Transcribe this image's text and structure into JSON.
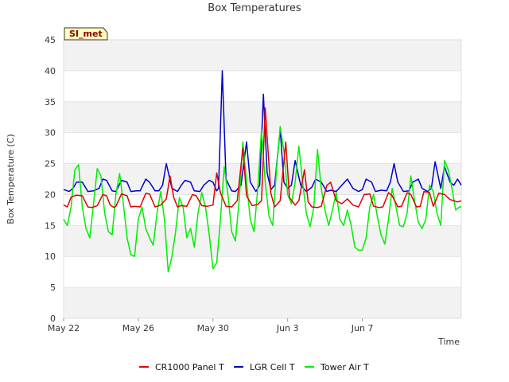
{
  "chart_data": {
    "type": "line",
    "title": "Box Temperatures",
    "xlabel": "Time",
    "ylabel": "Box Temperature (C)",
    "site_badge": "SI_met",
    "ylim": [
      0,
      45
    ],
    "yticks": [
      0,
      5,
      10,
      15,
      20,
      25,
      30,
      35,
      40,
      45
    ],
    "xlim_day": [
      0,
      21.3
    ],
    "xticks": [
      {
        "day": 0,
        "label": "May 22"
      },
      {
        "day": 4,
        "label": "May 26"
      },
      {
        "day": 8,
        "label": "May 30"
      },
      {
        "day": 12,
        "label": "Jun 3"
      },
      {
        "day": 16,
        "label": "Jun 7"
      }
    ],
    "grid_bands": true,
    "legend_position": "bottom-center",
    "series": [
      {
        "name": "CR1000 Panel T",
        "color": "#e00000",
        "x": [
          0.0,
          0.2,
          0.4,
          0.7,
          1.0,
          1.3,
          1.5,
          1.8,
          2.1,
          2.3,
          2.5,
          2.7,
          2.8,
          3.1,
          3.4,
          3.6,
          3.8,
          4.1,
          4.4,
          4.6,
          4.9,
          5.2,
          5.5,
          5.7,
          5.9,
          6.1,
          6.3,
          6.6,
          6.9,
          7.1,
          7.4,
          7.7,
          8.0,
          8.2,
          8.4,
          8.7,
          9.0,
          9.3,
          9.6,
          9.8,
          10.1,
          10.4,
          10.6,
          10.8,
          11.1,
          11.3,
          11.6,
          11.9,
          12.1,
          12.4,
          12.6,
          12.9,
          13.1,
          13.3,
          13.6,
          13.8,
          14.1,
          14.3,
          14.6,
          14.9,
          15.2,
          15.5,
          15.8,
          16.1,
          16.4,
          16.6,
          16.9,
          17.1,
          17.4,
          17.6,
          17.9,
          18.1,
          18.4,
          18.6,
          18.9,
          19.1,
          19.3,
          19.6,
          19.8,
          20.1,
          20.4,
          20.7,
          20.9,
          21.1,
          21.3
        ],
        "values": [
          18.3,
          18.0,
          19.6,
          19.9,
          19.8,
          18.0,
          17.9,
          18.2,
          20.0,
          19.8,
          18.3,
          17.9,
          18.1,
          20.1,
          19.8,
          18.0,
          18.1,
          18.0,
          20.2,
          20.1,
          18.0,
          18.3,
          19.3,
          23.0,
          19.5,
          18.0,
          18.2,
          18.1,
          20.0,
          19.8,
          18.2,
          18.1,
          18.3,
          23.5,
          20.3,
          18.1,
          18.0,
          19.0,
          27.5,
          19.8,
          18.2,
          18.4,
          19.0,
          34.0,
          20.2,
          18.0,
          19.0,
          28.5,
          19.5,
          18.3,
          19.0,
          24.0,
          18.8,
          18.0,
          17.9,
          18.1,
          21.5,
          22.0,
          19.0,
          18.5,
          19.3,
          18.3,
          18.0,
          20.0,
          20.1,
          18.1,
          17.9,
          18.0,
          20.3,
          19.8,
          18.0,
          18.1,
          20.3,
          20.0,
          18.0,
          18.1,
          20.5,
          20.3,
          18.1,
          20.2,
          20.0,
          19.2,
          19.0,
          18.8,
          19.0
        ]
      },
      {
        "name": "LGR Cell T",
        "color": "#0000cc",
        "x": [
          0.0,
          0.3,
          0.5,
          0.7,
          1.0,
          1.3,
          1.6,
          1.9,
          2.1,
          2.3,
          2.6,
          2.8,
          3.1,
          3.4,
          3.6,
          3.9,
          4.1,
          4.4,
          4.6,
          4.9,
          5.1,
          5.3,
          5.5,
          5.8,
          6.1,
          6.3,
          6.5,
          6.8,
          7.0,
          7.3,
          7.5,
          7.8,
          8.0,
          8.2,
          8.3,
          8.5,
          8.7,
          9.0,
          9.2,
          9.5,
          9.8,
          10.0,
          10.3,
          10.5,
          10.7,
          10.9,
          11.1,
          11.3,
          11.6,
          11.8,
          12.0,
          12.2,
          12.4,
          12.7,
          13.0,
          13.3,
          13.5,
          13.8,
          14.1,
          14.3,
          14.6,
          14.9,
          15.2,
          15.5,
          15.8,
          16.0,
          16.2,
          16.5,
          16.7,
          17.0,
          17.3,
          17.5,
          17.7,
          17.9,
          18.2,
          18.5,
          18.7,
          19.0,
          19.2,
          19.5,
          19.7,
          19.9,
          20.2,
          20.4,
          20.7,
          20.9,
          21.1,
          21.3
        ],
        "values": [
          20.8,
          20.5,
          21.0,
          22.0,
          22.0,
          20.5,
          20.6,
          21.0,
          22.5,
          22.3,
          20.6,
          20.5,
          22.3,
          22.0,
          20.5,
          20.6,
          20.6,
          22.5,
          22.0,
          20.6,
          20.6,
          21.5,
          25.0,
          21.0,
          20.5,
          21.5,
          22.3,
          22.0,
          20.6,
          20.5,
          21.5,
          22.3,
          22.0,
          20.6,
          21.0,
          40.0,
          22.5,
          20.6,
          20.5,
          21.5,
          28.5,
          22.0,
          20.5,
          21.5,
          36.2,
          23.5,
          20.8,
          21.5,
          30.5,
          22.0,
          21.0,
          21.5,
          25.5,
          21.5,
          20.5,
          21.2,
          22.5,
          22.0,
          20.5,
          20.7,
          20.5,
          21.5,
          22.5,
          21.0,
          20.5,
          20.8,
          22.5,
          22.0,
          20.5,
          20.7,
          20.6,
          22.0,
          25.0,
          22.0,
          20.5,
          20.6,
          22.0,
          22.5,
          21.0,
          20.5,
          21.0,
          25.3,
          21.0,
          24.5,
          22.0,
          21.5,
          22.5,
          21.5
        ]
      },
      {
        "name": "Tower Air T",
        "color": "#00ee00",
        "x": [
          0.0,
          0.2,
          0.4,
          0.6,
          0.8,
          1.0,
          1.2,
          1.4,
          1.6,
          1.8,
          2.0,
          2.2,
          2.4,
          2.6,
          2.8,
          3.0,
          3.2,
          3.4,
          3.6,
          3.8,
          4.0,
          4.2,
          4.4,
          4.6,
          4.8,
          5.0,
          5.2,
          5.4,
          5.6,
          5.8,
          6.0,
          6.2,
          6.4,
          6.6,
          6.8,
          7.0,
          7.2,
          7.4,
          7.6,
          7.8,
          8.0,
          8.2,
          8.4,
          8.6,
          8.8,
          9.0,
          9.2,
          9.4,
          9.6,
          9.8,
          10.0,
          10.2,
          10.4,
          10.6,
          10.8,
          11.0,
          11.2,
          11.4,
          11.6,
          11.8,
          12.0,
          12.2,
          12.4,
          12.6,
          12.8,
          13.0,
          13.2,
          13.4,
          13.6,
          13.8,
          14.0,
          14.2,
          14.4,
          14.6,
          14.8,
          15.0,
          15.2,
          15.4,
          15.6,
          15.8,
          16.0,
          16.2,
          16.4,
          16.6,
          16.8,
          17.0,
          17.2,
          17.4,
          17.6,
          17.8,
          18.0,
          18.2,
          18.4,
          18.6,
          18.8,
          19.0,
          19.2,
          19.4,
          19.6,
          19.8,
          20.0,
          20.2,
          20.4,
          20.6,
          20.8,
          21.0,
          21.2,
          21.3
        ],
        "values": [
          16.0,
          15.0,
          18.0,
          24.0,
          24.8,
          18.0,
          14.5,
          13.0,
          18.5,
          24.2,
          23.0,
          17.0,
          14.0,
          13.5,
          20.0,
          23.4,
          18.5,
          13.0,
          10.3,
          10.0,
          16.0,
          18.0,
          14.5,
          13.0,
          11.8,
          17.0,
          20.5,
          16.0,
          7.5,
          10.0,
          14.0,
          19.5,
          18.0,
          13.0,
          14.5,
          11.5,
          17.0,
          20.3,
          18.0,
          13.5,
          8.0,
          9.0,
          16.0,
          24.5,
          20.0,
          14.0,
          12.5,
          19.0,
          28.5,
          22.0,
          16.0,
          14.0,
          21.0,
          30.5,
          22.0,
          16.5,
          15.0,
          24.0,
          31.0,
          27.0,
          20.0,
          18.5,
          22.0,
          27.8,
          22.0,
          17.0,
          14.8,
          18.0,
          27.3,
          21.0,
          17.5,
          15.0,
          17.5,
          20.3,
          16.0,
          15.0,
          17.5,
          15.0,
          11.5,
          11.0,
          11.0,
          13.0,
          18.0,
          20.0,
          16.5,
          13.5,
          12.0,
          16.0,
          21.0,
          18.0,
          15.0,
          14.8,
          17.0,
          23.0,
          19.0,
          15.5,
          14.5,
          16.0,
          21.5,
          20.5,
          17.0,
          15.0,
          25.5,
          24.0,
          21.0,
          17.5,
          18.0,
          18.0
        ]
      }
    ]
  }
}
